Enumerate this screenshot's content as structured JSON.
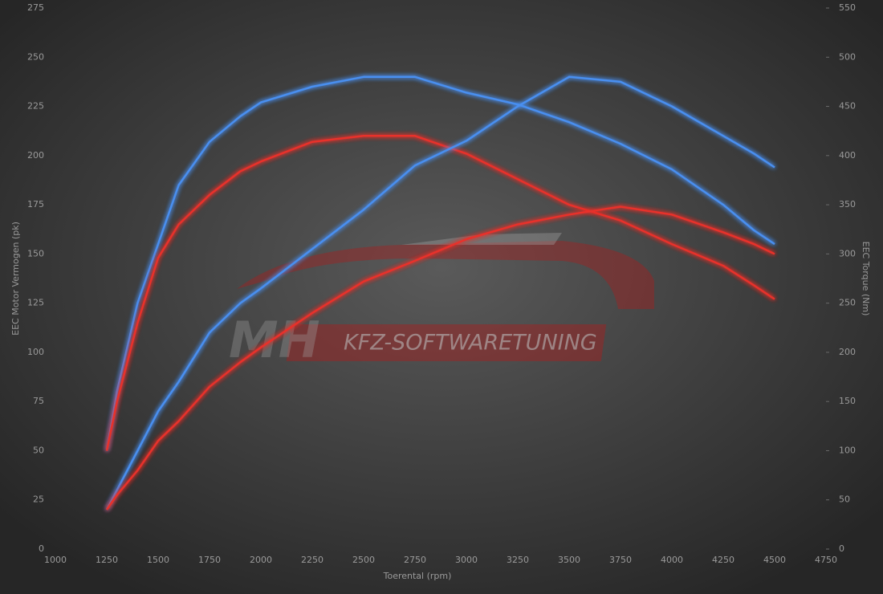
{
  "chart_data": {
    "type": "line",
    "watermark": [
      "MH",
      "KFZ-SOFTWARETUNING"
    ],
    "xlabel": "Toerental (rpm)",
    "ylabel": "EEC Motor Vermogen (pk)",
    "y2label": "EEC Torque (Nm)",
    "x": [
      1250,
      1300,
      1400,
      1500,
      1600,
      1750,
      1900,
      2000,
      2250,
      2500,
      2750,
      3000,
      3250,
      3500,
      3750,
      4000,
      4250,
      4400,
      4500
    ],
    "series": [
      {
        "color": "#4a8ff0",
        "values": [
          50,
          80,
          125,
          155,
          185,
          207,
          220,
          227,
          235,
          240,
          240,
          232,
          226,
          217,
          206,
          193,
          175,
          162,
          155
        ]
      },
      {
        "color": "#e8302c",
        "values": [
          50,
          75,
          115,
          148,
          165,
          180,
          192,
          197,
          207,
          210,
          210,
          201,
          188,
          175,
          167,
          155,
          144,
          134,
          127
        ]
      },
      {
        "color": "#4a8ff0",
        "axis": "y2",
        "values": [
          40,
          60,
          100,
          140,
          170,
          220,
          250,
          265,
          305,
          345,
          390,
          415,
          450,
          480,
          475,
          450,
          420,
          402,
          388
        ]
      },
      {
        "color": "#e8302c",
        "axis": "y2",
        "values": [
          40,
          55,
          80,
          110,
          130,
          165,
          190,
          205,
          240,
          272,
          293,
          315,
          330,
          340,
          348,
          340,
          322,
          310,
          300
        ]
      }
    ],
    "xlim": [
      1000,
      4750
    ],
    "xticks": [
      1000,
      1250,
      1500,
      1750,
      2000,
      2250,
      2500,
      2750,
      3000,
      3250,
      3500,
      3750,
      4000,
      4250,
      4500,
      4750
    ],
    "ylim": [
      0,
      275
    ],
    "yticks": [
      0,
      25,
      50,
      75,
      100,
      125,
      150,
      175,
      200,
      225,
      250,
      275
    ],
    "y2lim": [
      0,
      550
    ],
    "y2ticks": [
      0,
      50,
      100,
      150,
      200,
      250,
      300,
      350,
      400,
      450,
      500,
      550
    ],
    "grid": true
  }
}
